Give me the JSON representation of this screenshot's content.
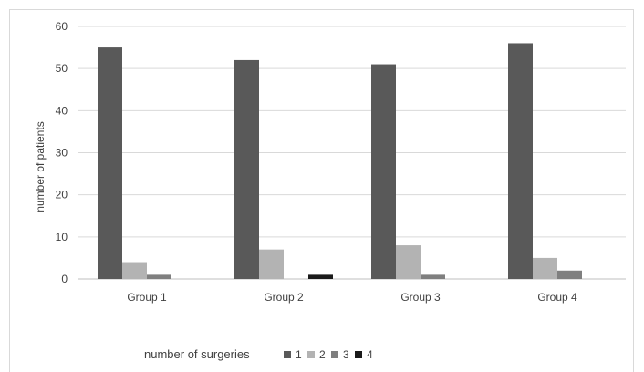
{
  "chart_data": {
    "type": "bar",
    "title": "",
    "categories": [
      "Group 1",
      "Group 2",
      "Group 3",
      "Group 4"
    ],
    "ylabel": "number of patients",
    "xlabel": "",
    "ylim": [
      0,
      60
    ],
    "yticks": [
      0,
      10,
      20,
      30,
      40,
      50,
      60
    ],
    "grid": true,
    "legend_title": "number of surgeries",
    "legend_position": "bottom",
    "series": [
      {
        "name": "1",
        "color": "#595959",
        "values": [
          55,
          52,
          51,
          56
        ]
      },
      {
        "name": "2",
        "color": "#b3b3b3",
        "values": [
          4,
          7,
          8,
          5
        ]
      },
      {
        "name": "3",
        "color": "#7f7f7f",
        "values": [
          1,
          0,
          1,
          2
        ]
      },
      {
        "name": "4",
        "color": "#1a1a1a",
        "values": [
          0,
          1,
          0,
          0
        ]
      }
    ]
  }
}
